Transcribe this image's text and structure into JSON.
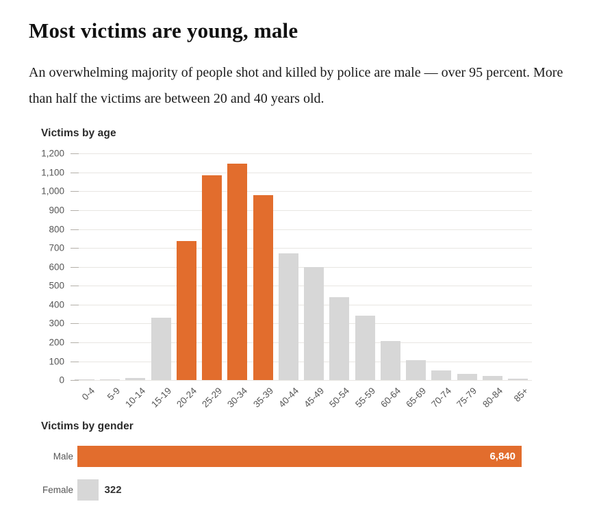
{
  "page": {
    "title": "Most victims are young, male",
    "intro": "An overwhelming majority of people shot and killed by police are male — over 95 percent. More than half the victims are between 20 and 40 years old."
  },
  "colors": {
    "highlight_orange": "#e26d2d",
    "muted_gray": "#d7d7d7",
    "gridline": "#e8e6e2",
    "tickmark": "#b3afa8",
    "axis_text": "#565656",
    "heading_text": "#111111",
    "body_text": "#1a1a1a",
    "chart_title_text": "#2a2a2a",
    "value_inside_bar_text": "#ffffff",
    "value_outside_bar_text": "#333333"
  },
  "chart_data": [
    {
      "type": "bar",
      "title": "Victims by age",
      "categories": [
        "0-4",
        "5-9",
        "10-14",
        "15-19",
        "20-24",
        "25-29",
        "30-34",
        "35-39",
        "40-44",
        "45-49",
        "50-54",
        "55-59",
        "60-64",
        "65-69",
        "70-74",
        "75-79",
        "80-84",
        "85+"
      ],
      "values": [
        2,
        5,
        12,
        330,
        738,
        1084,
        1147,
        978,
        673,
        600,
        438,
        340,
        208,
        107,
        52,
        33,
        22,
        8
      ],
      "highlighted_categories": [
        "20-24",
        "25-29",
        "30-34",
        "35-39"
      ],
      "xlabel": "",
      "ylabel": "",
      "ylim": [
        0,
        1200
      ],
      "ytick_step": 100,
      "ytick_labels": [
        "0",
        "100",
        "200",
        "300",
        "400",
        "500",
        "600",
        "700",
        "800",
        "900",
        "1,000",
        "1,100",
        "1,200"
      ],
      "grid": "horizontal gridlines on",
      "legend": "none"
    },
    {
      "type": "bar",
      "orientation": "horizontal",
      "title": "Victims by gender",
      "categories": [
        "Male",
        "Female"
      ],
      "values": [
        6840,
        322
      ],
      "value_labels": [
        "6,840",
        "322"
      ],
      "highlighted_categories": [
        "Male"
      ],
      "xlim": [
        0,
        6840
      ],
      "grid": "off",
      "legend": "none"
    }
  ]
}
